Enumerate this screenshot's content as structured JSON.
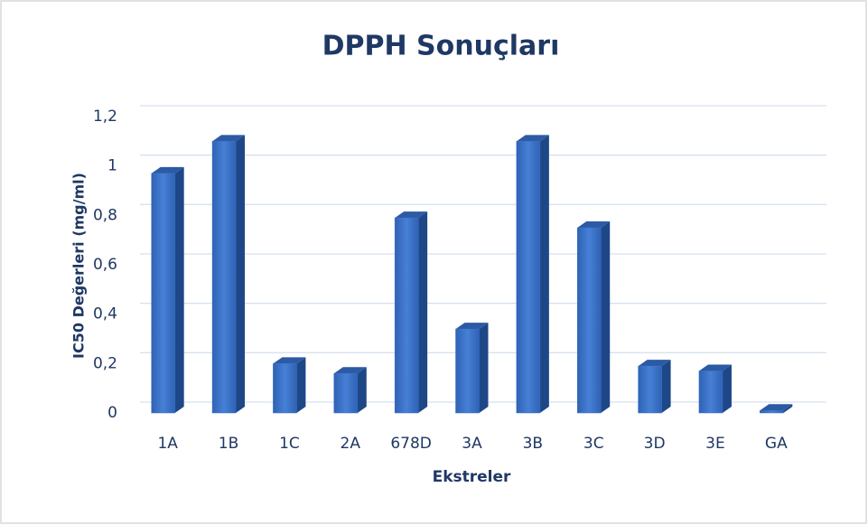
{
  "chart_data": {
    "type": "bar",
    "title": "DPPH Sonuçları",
    "x_label": "Ekstreler",
    "y_label": "IC50 Değerleri (mg/ml)",
    "categories": [
      "1A",
      "1B",
      "1C",
      "2A",
      "678D",
      "3A",
      "3B",
      "3C",
      "3D",
      "3E",
      "GA"
    ],
    "values": [
      0.97,
      1.1,
      0.2,
      0.16,
      0.79,
      0.34,
      1.1,
      0.75,
      0.19,
      0.17,
      0.01
    ],
    "color": "#3a70c6",
    "ylim": [
      0,
      1.2
    ],
    "yticks": [
      0,
      {
        "value": 0.2,
        "label": "0,2"
      },
      {
        "value": 0.4,
        "label": "0,4"
      },
      {
        "value": 0.6,
        "label": "0,6"
      },
      {
        "value": 0.8,
        "label": "0,8"
      },
      1,
      {
        "value": 1.2,
        "label": "1,2"
      }
    ],
    "grid": true
  }
}
